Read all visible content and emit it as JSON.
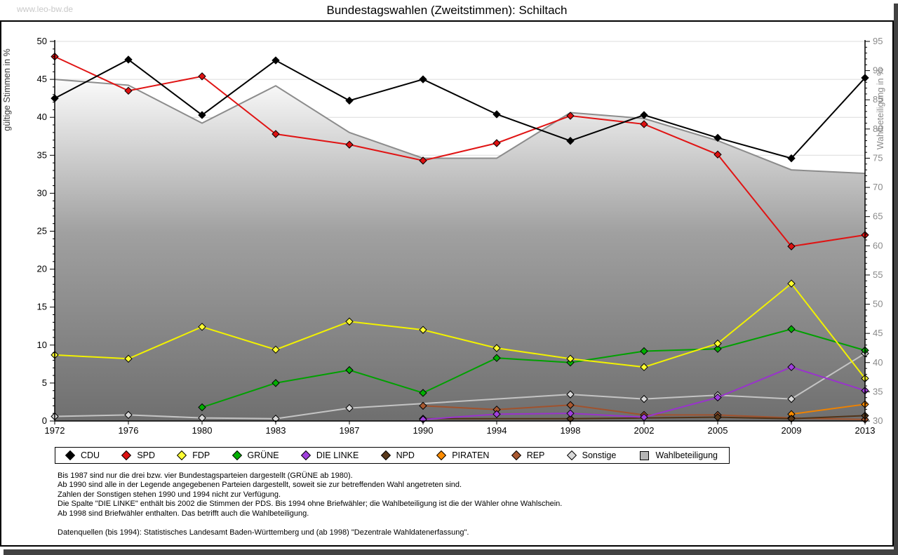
{
  "watermark": "www.leo-bw.de",
  "title": "Bundestagswahlen (Zweitstimmen): Schiltach",
  "chart_data": {
    "type": "line",
    "title": "Bundestagswahlen (Zweitstimmen): Schiltach",
    "x_categories": [
      "1972",
      "1976",
      "1980",
      "1983",
      "1987",
      "1990",
      "1994",
      "1998",
      "2002",
      "2005",
      "2009",
      "2013"
    ],
    "y_left": {
      "label": "gültige Stimmen in %",
      "min": 0,
      "max": 50,
      "step": 5
    },
    "y_right": {
      "label": "Wahlbeteiligung in %",
      "min": 30,
      "max": 95,
      "step": 5
    },
    "grid": true,
    "legend_position": "bottom",
    "series": [
      {
        "name": "CDU",
        "color": "#000000",
        "marker": "#000000",
        "axis": "left",
        "values": [
          42.5,
          47.6,
          40.3,
          47.5,
          42.2,
          45.0,
          40.4,
          36.9,
          40.3,
          37.3,
          34.6,
          45.2
        ]
      },
      {
        "name": "SPD",
        "color": "#e01414",
        "marker": "#dd1111",
        "axis": "left",
        "values": [
          48.0,
          43.5,
          45.4,
          37.8,
          36.4,
          34.3,
          36.6,
          40.2,
          39.1,
          35.1,
          23.0,
          24.5
        ]
      },
      {
        "name": "FDP",
        "color": "#f2f200",
        "marker": "#ffff33",
        "axis": "left",
        "values": [
          8.7,
          8.2,
          12.4,
          9.4,
          13.1,
          12.0,
          9.6,
          8.2,
          7.1,
          10.2,
          18.1,
          5.6
        ]
      },
      {
        "name": "GRÜNE",
        "color": "#00a000",
        "marker": "#00b000",
        "axis": "left",
        "values": [
          null,
          null,
          1.8,
          5.0,
          6.7,
          3.7,
          8.3,
          7.7,
          9.2,
          9.5,
          12.1,
          9.3
        ]
      },
      {
        "name": "DIE LINKE",
        "color": "#9933cc",
        "marker": "#a040dd",
        "axis": "left",
        "values": [
          null,
          null,
          null,
          null,
          null,
          0.2,
          0.9,
          1.0,
          0.5,
          3.1,
          7.1,
          4.0
        ]
      },
      {
        "name": "NPD",
        "color": "#503318",
        "marker": "#5a3a1c",
        "axis": "left",
        "values": [
          null,
          null,
          null,
          null,
          null,
          0.3,
          null,
          0.3,
          null,
          0.5,
          0.3,
          0.7
        ]
      },
      {
        "name": "PIRATEN",
        "color": "#ef8200",
        "marker": "#ff8c00",
        "axis": "left",
        "values": [
          null,
          null,
          null,
          null,
          null,
          null,
          null,
          null,
          null,
          null,
          0.9,
          2.2
        ]
      },
      {
        "name": "REP",
        "color": "#a0522d",
        "marker": "#a85830",
        "axis": "left",
        "values": [
          null,
          null,
          null,
          null,
          null,
          2.0,
          1.5,
          2.1,
          0.8,
          0.8,
          0.4,
          0.2
        ]
      },
      {
        "name": "Sonstige",
        "color": "#c4c4c4",
        "marker": "#d9d9d9",
        "axis": "left",
        "values": [
          0.6,
          0.8,
          0.4,
          0.3,
          1.7,
          null,
          null,
          3.5,
          2.9,
          3.4,
          2.9,
          8.9
        ]
      }
    ],
    "turnout": {
      "name": "Wahlbeteiligung",
      "axis": "right",
      "line_color": "#8c8c8c",
      "area_gradient": [
        "#fbfbfb",
        "#a0a0a0",
        "#6f6f6f"
      ],
      "values": [
        88.5,
        87.5,
        81.0,
        87.4,
        79.4,
        75.0,
        75.0,
        82.8,
        81.8,
        78.0,
        73.0,
        72.4
      ]
    }
  },
  "footnotes": [
    "Bis 1987 sind nur die drei bzw. vier Bundestagsparteien dargestellt (GRÜNE ab 1980).",
    "Ab 1990 sind alle in der Legende angegebenen Parteien dargestellt, soweit sie zur betreffenden Wahl angetreten sind.",
    "Zahlen der Sonstigen stehen 1990 und 1994 nicht zur Verfügung.",
    "Die Spalte \"DIE LINKE\" enthält bis 2002 die Stimmen der PDS. Bis 1994 ohne Briefwähler; die Wahlbeteiligung ist die der Wähler ohne Wahlschein.",
    "Ab 1998 sind Briefwähler enthalten. Das betrifft auch die Wahlbeteiligung."
  ],
  "source_line": "Datenquellen (bis 1994): Statistisches Landesamt Baden-Württemberg und (ab 1998) \"Dezentrale Wahldatenerfassung\"."
}
